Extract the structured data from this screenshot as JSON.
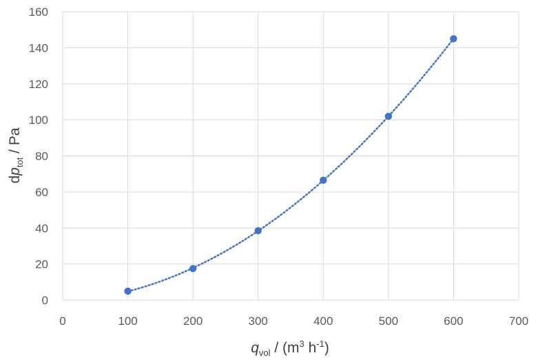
{
  "chart_data": {
    "type": "scatter",
    "series": [
      {
        "x": [
          100,
          200,
          300,
          400,
          500,
          600
        ],
        "y": [
          5,
          17.5,
          38.5,
          66.5,
          102,
          145
        ],
        "color": "#4472c4",
        "trendline": "dotted"
      }
    ],
    "xlim": [
      0,
      700
    ],
    "ylim": [
      0,
      160
    ],
    "xticks": [
      0,
      100,
      200,
      300,
      400,
      500,
      600,
      700
    ],
    "yticks": [
      0,
      20,
      40,
      60,
      80,
      100,
      120,
      140,
      160
    ],
    "grid": true,
    "xlabel": {
      "var": "q",
      "sub": "vol",
      "unit_open": " / (m",
      "sup1": "3",
      "unit_mid": " h",
      "sup2": "-1",
      "unit_close": ")"
    },
    "ylabel": {
      "pre": "d",
      "var": "p",
      "sub": "tot",
      "unit": " / Pa"
    }
  }
}
